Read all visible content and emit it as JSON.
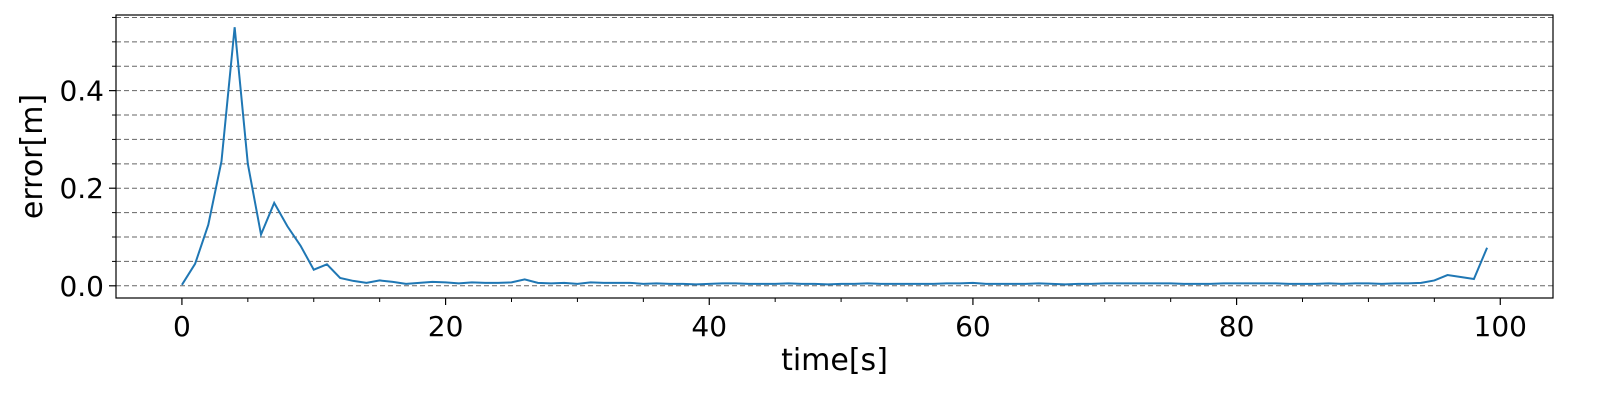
{
  "chart_data": {
    "type": "line",
    "title": "",
    "xlabel": "time[s]",
    "ylabel": "error[m]",
    "xlim": [
      -5,
      104
    ],
    "ylim": [
      -0.025,
      0.555
    ],
    "xticks": [
      0,
      20,
      40,
      60,
      80,
      100
    ],
    "xtick_labels": [
      "0",
      "20",
      "40",
      "60",
      "80",
      "100"
    ],
    "yticks": [
      0.0,
      0.2,
      0.4
    ],
    "ytick_labels": [
      "0.0",
      "0.2",
      "0.4"
    ],
    "y_gridlines": [
      0.0,
      0.05,
      0.1,
      0.15,
      0.2,
      0.25,
      0.3,
      0.35,
      0.4,
      0.45,
      0.5,
      0.55
    ],
    "grid": "horizontal-dashed",
    "line_color": "#1f77b4",
    "series": [
      {
        "x": [
          0,
          1,
          2,
          3,
          4,
          5,
          6,
          7,
          8,
          9,
          10,
          11,
          12,
          13,
          14,
          15,
          16,
          17,
          18,
          19,
          20,
          21,
          22,
          23,
          24,
          25,
          26,
          27,
          28,
          29,
          30,
          31,
          32,
          33,
          34,
          35,
          36,
          37,
          38,
          39,
          40,
          41,
          42,
          43,
          44,
          45,
          46,
          47,
          48,
          49,
          50,
          51,
          52,
          53,
          54,
          55,
          56,
          57,
          58,
          59,
          60,
          61,
          62,
          63,
          64,
          65,
          66,
          67,
          68,
          69,
          70,
          71,
          72,
          73,
          74,
          75,
          76,
          77,
          78,
          79,
          80,
          81,
          82,
          83,
          84,
          85,
          86,
          87,
          88,
          89,
          90,
          91,
          92,
          93,
          94,
          95,
          96,
          97,
          98,
          99
        ],
        "y": [
          0.002,
          0.045,
          0.125,
          0.255,
          0.53,
          0.25,
          0.105,
          0.17,
          0.122,
          0.082,
          0.033,
          0.044,
          0.016,
          0.01,
          0.006,
          0.011,
          0.008,
          0.004,
          0.006,
          0.008,
          0.007,
          0.005,
          0.007,
          0.006,
          0.006,
          0.007,
          0.013,
          0.006,
          0.005,
          0.006,
          0.004,
          0.007,
          0.006,
          0.006,
          0.006,
          0.004,
          0.005,
          0.004,
          0.004,
          0.003,
          0.004,
          0.005,
          0.005,
          0.004,
          0.004,
          0.004,
          0.005,
          0.004,
          0.004,
          0.003,
          0.004,
          0.004,
          0.005,
          0.004,
          0.004,
          0.004,
          0.004,
          0.004,
          0.005,
          0.005,
          0.006,
          0.004,
          0.004,
          0.004,
          0.004,
          0.005,
          0.004,
          0.003,
          0.004,
          0.004,
          0.005,
          0.005,
          0.005,
          0.005,
          0.005,
          0.005,
          0.004,
          0.004,
          0.004,
          0.005,
          0.005,
          0.005,
          0.005,
          0.005,
          0.004,
          0.004,
          0.004,
          0.005,
          0.004,
          0.005,
          0.005,
          0.004,
          0.005,
          0.005,
          0.006,
          0.011,
          0.022,
          0.018,
          0.014,
          0.078
        ]
      }
    ]
  }
}
